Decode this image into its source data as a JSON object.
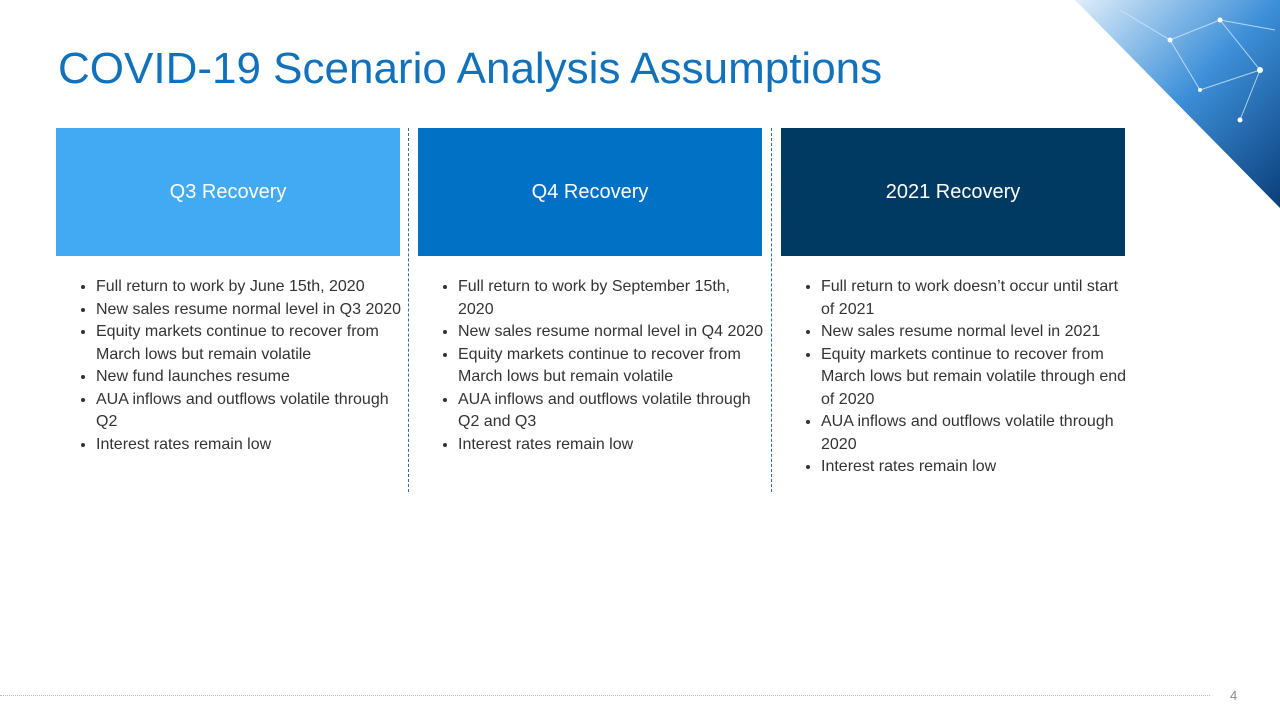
{
  "header": {
    "title": "COVID-19 Scenario Analysis Assumptions"
  },
  "columns": [
    {
      "heading": "Q3 Recovery",
      "bullets": [
        "Full return to work by June 15th, 2020",
        "New sales resume normal level in Q3 2020",
        "Equity markets continue to recover from March lows but remain volatile",
        "New fund launches resume",
        "AUA inflows and outflows volatile through Q2",
        "Interest rates remain low"
      ]
    },
    {
      "heading": "Q4 Recovery",
      "bullets": [
        "Full return to work by September 15th, 2020",
        "New sales resume normal level in Q4 2020",
        "Equity markets continue to recover from March lows but remain volatile",
        "AUA inflows and outflows volatile through Q2 and Q3",
        "Interest rates remain low"
      ]
    },
    {
      "heading": "2021 Recovery",
      "bullets": [
        "Full return to work doesn’t occur until start of 2021",
        "New sales resume normal level in 2021",
        "Equity markets continue to recover from March lows but remain volatile through end of 2020",
        "AUA inflows and outflows volatile through 2020",
        "Interest rates remain low"
      ]
    }
  ],
  "footer": {
    "page_number": "4"
  }
}
